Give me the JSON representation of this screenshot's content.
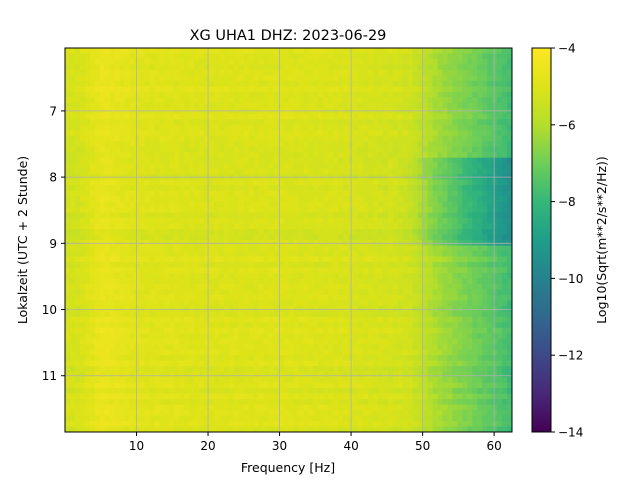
{
  "chart_data": {
    "type": "heatmap",
    "title": "XG UHA1  DHZ: 2023-06-29",
    "xlabel": "Frequency [Hz]",
    "ylabel": "Lokalzeit (UTC + 2 Stunde)",
    "xlim": [
      0,
      62.5
    ],
    "ylim": [
      11.85,
      6.05
    ],
    "xticks": [
      10,
      20,
      30,
      40,
      50,
      60
    ],
    "yticks": [
      7,
      8,
      9,
      10,
      11
    ],
    "grid": true,
    "colormap": "viridis",
    "colorbar": {
      "label": "Log10(Sqrt(m**2/s**2/Hz))",
      "range": [
        -14,
        -4
      ],
      "ticks": [
        -4,
        -6,
        -8,
        -10,
        -12,
        -14
      ]
    },
    "z_summary": [
      {
        "freq_hz": 2,
        "value": -5.2
      },
      {
        "freq_hz": 5,
        "value": -4.6
      },
      {
        "freq_hz": 10,
        "value": -4.9
      },
      {
        "freq_hz": 20,
        "value": -5.0
      },
      {
        "freq_hz": 30,
        "value": -5.0
      },
      {
        "freq_hz": 40,
        "value": -5.1
      },
      {
        "freq_hz": 48,
        "value": -5.3
      },
      {
        "freq_hz": 52,
        "value": -6.2
      },
      {
        "freq_hz": 56,
        "value": -6.8
      },
      {
        "freq_hz": 60,
        "value": -7.4
      },
      {
        "freq_hz": 62.5,
        "value": -7.8
      }
    ],
    "quiet_period_hours": [
      7.7,
      9.0
    ]
  }
}
